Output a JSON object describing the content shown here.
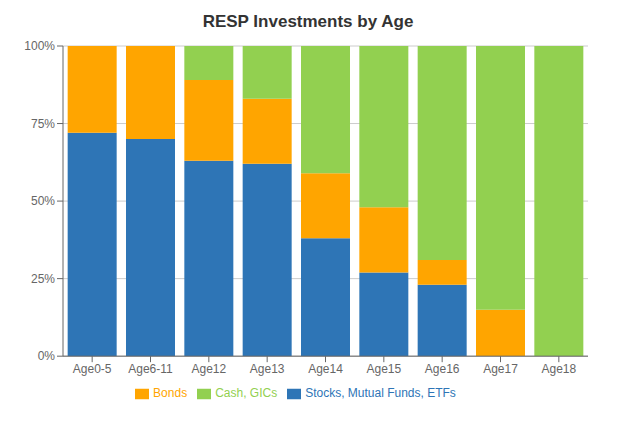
{
  "chart_data": {
    "type": "bar",
    "title": "RESP Investments by Age",
    "categories": [
      "Age0-5",
      "Age6-11",
      "Age12",
      "Age13",
      "Age14",
      "Age15",
      "Age16",
      "Age17",
      "Age18"
    ],
    "series": [
      {
        "name": "Stocks, Mutual Funds, ETFs",
        "color": "#2E75B6",
        "values": [
          72,
          70,
          63,
          62,
          38,
          27,
          23,
          0,
          0
        ]
      },
      {
        "name": "Bonds",
        "color": "#FFA500",
        "values": [
          28,
          30,
          26,
          21,
          21,
          21,
          8,
          15,
          0
        ]
      },
      {
        "name": "Cash, GICs",
        "color": "#92D050",
        "values": [
          0,
          0,
          11,
          17,
          41,
          52,
          69,
          85,
          100
        ]
      }
    ],
    "stacked": true,
    "ylim": [
      0,
      100
    ],
    "yticks": [
      {
        "value": 0,
        "label": "0%"
      },
      {
        "value": 25,
        "label": "25%"
      },
      {
        "value": 50,
        "label": "50%"
      },
      {
        "value": 75,
        "label": "75%"
      },
      {
        "value": 100,
        "label": "100%"
      }
    ],
    "grid": true,
    "legend": "bottom"
  }
}
